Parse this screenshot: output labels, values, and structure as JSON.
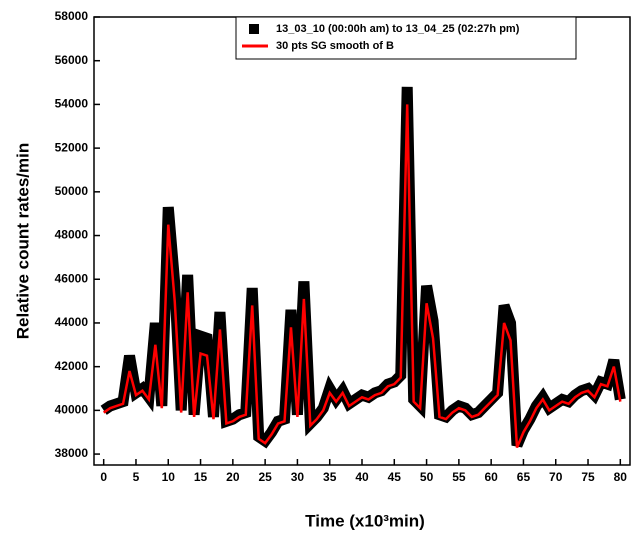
{
  "chart_data": {
    "type": "line",
    "x_label": "Time (x10³min)",
    "y_label": "Relative count rates/min",
    "x": [
      0,
      1,
      2,
      3,
      4,
      5,
      6,
      7,
      8,
      9,
      10,
      11,
      12,
      13,
      14,
      15,
      16,
      17,
      18,
      19,
      20,
      21,
      22,
      23,
      24,
      25,
      26,
      27,
      28,
      29,
      30,
      31,
      32,
      33,
      34,
      35,
      36,
      37,
      38,
      39,
      40,
      41,
      42,
      43,
      44,
      45,
      46,
      47,
      48,
      49,
      50,
      51,
      52,
      53,
      54,
      55,
      56,
      57,
      58,
      59,
      60,
      61,
      62,
      63,
      64,
      65,
      66,
      67,
      68,
      69,
      70,
      71,
      72,
      73,
      74,
      75,
      76,
      77,
      78,
      79,
      80
    ],
    "series": [
      {
        "name": "13_03_10 (00:00h am) to 13_04_25 (02:27h pm)",
        "color": "#000000",
        "values": [
          40000,
          40200,
          40300,
          40400,
          42500,
          40800,
          41000,
          40600,
          44000,
          40200,
          49300,
          45800,
          40000,
          46200,
          39800,
          43400,
          43300,
          39700,
          44500,
          39500,
          39600,
          39800,
          39900,
          45600,
          38800,
          38600,
          39000,
          39500,
          39600,
          44600,
          39800,
          45900,
          39400,
          39700,
          40100,
          41000,
          40500,
          40900,
          40300,
          40500,
          40700,
          40600,
          40800,
          40900,
          41200,
          41300,
          41600,
          54800,
          40500,
          40200,
          45700,
          44100,
          39800,
          39700,
          40000,
          40200,
          40100,
          39800,
          39900,
          40200,
          40500,
          40800,
          44800,
          44000,
          38400,
          39100,
          39600,
          40200,
          40600,
          40100,
          40300,
          40500,
          40400,
          40700,
          40900,
          41000,
          40700,
          41300,
          41200,
          42300,
          40500
        ]
      },
      {
        "name": "30 pts SG smooth of B",
        "color": "#ff0000",
        "values": [
          39900,
          40100,
          40200,
          40300,
          41800,
          40700,
          40900,
          40500,
          43000,
          40100,
          48500,
          45000,
          39900,
          45400,
          39700,
          42600,
          42500,
          39600,
          43700,
          39400,
          39500,
          39700,
          39800,
          44800,
          38700,
          38500,
          38900,
          39400,
          39500,
          43800,
          39700,
          45100,
          39300,
          39600,
          40000,
          40800,
          40400,
          40800,
          40200,
          40400,
          40600,
          40500,
          40700,
          40800,
          41100,
          41200,
          41500,
          54000,
          40400,
          40100,
          44900,
          43300,
          39700,
          39600,
          39900,
          40100,
          40000,
          39700,
          39800,
          40100,
          40400,
          40700,
          44000,
          43200,
          38300,
          39000,
          39500,
          40100,
          40500,
          40000,
          40200,
          40400,
          40300,
          40600,
          40800,
          40900,
          40600,
          41200,
          41100,
          42000,
          40400
        ]
      }
    ],
    "xlim": [
      -1.5,
      81.5
    ],
    "ylim": [
      37500,
      58000
    ],
    "xticks": [
      0,
      5,
      10,
      15,
      20,
      25,
      30,
      35,
      40,
      45,
      50,
      55,
      60,
      65,
      70,
      75,
      80
    ],
    "yticks": [
      38000,
      40000,
      42000,
      44000,
      46000,
      48000,
      50000,
      52000,
      54000,
      56000,
      58000
    ]
  }
}
